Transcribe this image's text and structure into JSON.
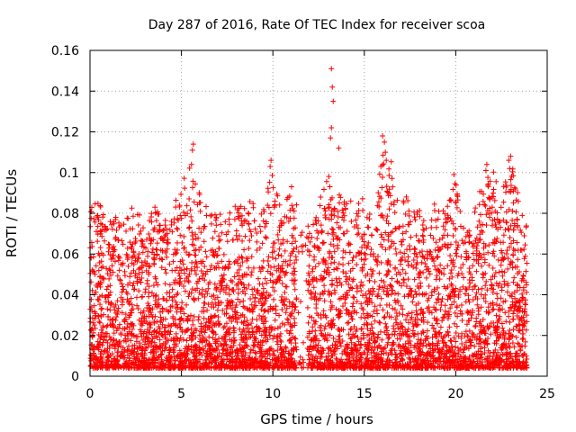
{
  "chart_data": {
    "type": "scatter",
    "title": "Day 287 of 2016, Rate Of TEC Index for receiver scoa",
    "xlabel": "GPS time / hours",
    "ylabel": "ROTI / TECUs",
    "xlim": [
      0,
      25
    ],
    "ylim": [
      0,
      0.16
    ],
    "x_ticks": [
      0,
      5,
      10,
      15,
      20,
      25
    ],
    "y_ticks": [
      0,
      0.02,
      0.04,
      0.06,
      0.08,
      0.1,
      0.12,
      0.14,
      0.16
    ],
    "x_tick_labels": [
      "0",
      "5",
      "10",
      "15",
      "20",
      "25"
    ],
    "y_tick_labels": [
      "0",
      "0.02",
      "0.04",
      "0.06",
      "0.08",
      "0.1",
      "0.12",
      "0.14",
      "0.16"
    ],
    "grid": true,
    "marker": "+",
    "point_color": "#ff0000",
    "series": [
      {
        "name": "ROTI",
        "x_start": 0.0,
        "x_end": 23.9,
        "baseline": 0.004,
        "envelope_hours": [
          0.0,
          0.5,
          1.0,
          1.5,
          2.0,
          2.5,
          3.0,
          3.5,
          4.0,
          4.5,
          5.0,
          5.5,
          6.0,
          6.5,
          7.0,
          7.5,
          8.0,
          8.5,
          9.0,
          9.5,
          10.0,
          10.5,
          11.0,
          11.5,
          12.0,
          12.5,
          13.0,
          13.5,
          14.0,
          14.5,
          15.0,
          15.5,
          16.0,
          16.5,
          17.0,
          17.5,
          18.0,
          18.5,
          19.0,
          19.5,
          20.0,
          20.5,
          21.0,
          21.5,
          22.0,
          22.5,
          23.0,
          23.5,
          23.9
        ],
        "envelope_max": [
          0.085,
          0.088,
          0.075,
          0.08,
          0.078,
          0.09,
          0.072,
          0.085,
          0.078,
          0.082,
          0.095,
          0.11,
          0.09,
          0.083,
          0.08,
          0.078,
          0.09,
          0.085,
          0.088,
          0.082,
          0.105,
          0.085,
          0.095,
          0.08,
          0.075,
          0.085,
          0.1,
          0.09,
          0.088,
          0.085,
          0.088,
          0.075,
          0.115,
          0.105,
          0.09,
          0.088,
          0.085,
          0.078,
          0.09,
          0.082,
          0.098,
          0.07,
          0.085,
          0.095,
          0.102,
          0.09,
          0.108,
          0.085,
          0.075
        ],
        "outliers": [
          {
            "x": 13.2,
            "y": 0.151
          },
          {
            "x": 13.25,
            "y": 0.142
          },
          {
            "x": 13.3,
            "y": 0.135
          },
          {
            "x": 13.2,
            "y": 0.122
          },
          {
            "x": 13.15,
            "y": 0.117
          },
          {
            "x": 13.6,
            "y": 0.112
          },
          {
            "x": 5.65,
            "y": 0.114
          },
          {
            "x": 5.6,
            "y": 0.111
          },
          {
            "x": 5.55,
            "y": 0.104
          },
          {
            "x": 16.0,
            "y": 0.118
          },
          {
            "x": 16.1,
            "y": 0.115
          },
          {
            "x": 16.15,
            "y": 0.11
          },
          {
            "x": 16.2,
            "y": 0.106
          },
          {
            "x": 9.9,
            "y": 0.106
          },
          {
            "x": 9.85,
            "y": 0.103
          },
          {
            "x": 19.9,
            "y": 0.099
          },
          {
            "x": 23.0,
            "y": 0.108
          },
          {
            "x": 22.9,
            "y": 0.106
          },
          {
            "x": 22.95,
            "y": 0.102
          },
          {
            "x": 21.7,
            "y": 0.104
          },
          {
            "x": 21.65,
            "y": 0.101
          }
        ]
      }
    ]
  }
}
